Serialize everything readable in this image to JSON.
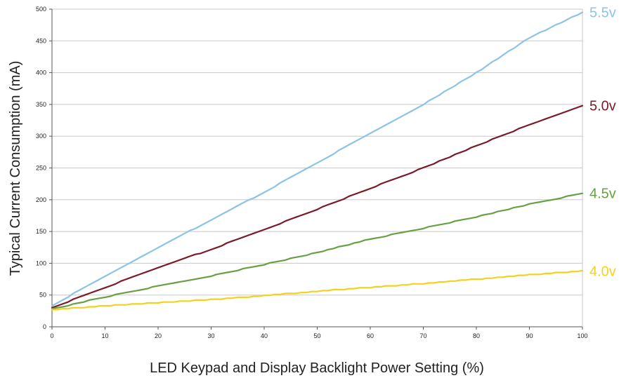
{
  "chart_data": {
    "type": "line",
    "title": "",
    "xlabel": "LED Keypad and Display Backlight Power Setting (%)",
    "ylabel": "Typical Current Consumption (mA)",
    "xlim": [
      0,
      100
    ],
    "ylim": [
      0,
      500
    ],
    "x_ticks": [
      "0",
      "10",
      "20",
      "30",
      "40",
      "50",
      "60",
      "70",
      "80",
      "90",
      "100"
    ],
    "y_ticks": [
      "0",
      "50",
      "100",
      "150",
      "200",
      "250",
      "300",
      "350",
      "400",
      "450",
      "500"
    ],
    "grid": "horizontal",
    "legend": "right end labels",
    "x": [
      0,
      10,
      20,
      30,
      40,
      50,
      60,
      70,
      80,
      90,
      100
    ],
    "series": [
      {
        "name": "5.5v",
        "color": "#8cc3e6",
        "values": [
          33,
          80,
          125,
          168,
          212,
          258,
          305,
          350,
          400,
          455,
          495
        ]
      },
      {
        "name": "5.0v",
        "color": "#7a1a28",
        "values": [
          30,
          62,
          93,
          122,
          153,
          185,
          218,
          250,
          285,
          318,
          348
        ]
      },
      {
        "name": "4.5v",
        "color": "#66a043",
        "values": [
          28,
          47,
          64,
          80,
          98,
          117,
          138,
          155,
          173,
          193,
          210
        ]
      },
      {
        "name": "4.0v",
        "color": "#f2d21e",
        "values": [
          27,
          33,
          38,
          43,
          49,
          56,
          62,
          68,
          75,
          82,
          88
        ]
      }
    ]
  }
}
